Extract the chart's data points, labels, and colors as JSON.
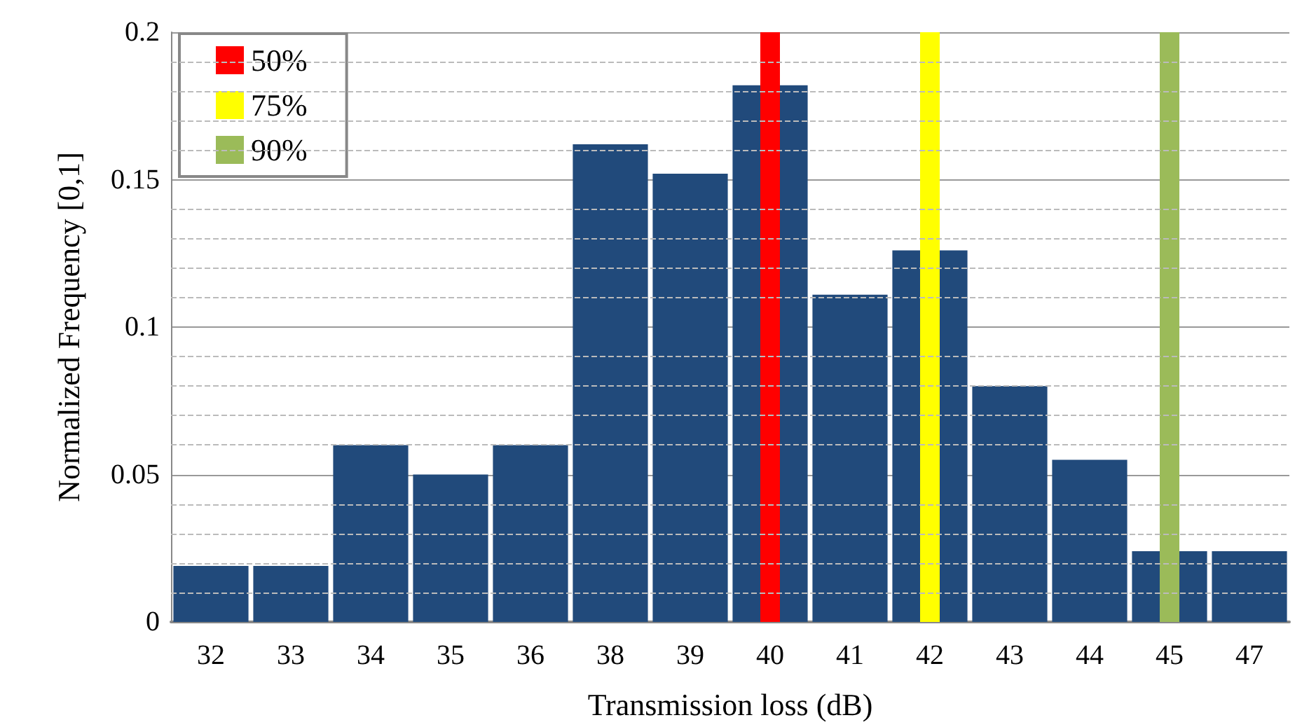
{
  "chart_data": {
    "type": "bar",
    "xlabel": "Transmission loss (dB)",
    "ylabel": "Normalized Frequency [0,1]",
    "categories": [
      "32",
      "33",
      "34",
      "35",
      "36",
      "38",
      "39",
      "40",
      "41",
      "42",
      "43",
      "44",
      "45",
      "47"
    ],
    "series": [
      {
        "color": "#214a7b",
        "values": [
          0.019,
          0.019,
          0.06,
          0.05,
          0.06,
          0.162,
          0.152,
          0.182,
          0.111,
          0.126,
          0.08,
          0.055,
          0.024,
          0.024
        ]
      },
      {
        "name": "50%",
        "color": "#ff0000",
        "values": [
          null,
          null,
          null,
          null,
          null,
          null,
          null,
          0.2,
          null,
          null,
          null,
          null,
          null,
          null
        ]
      },
      {
        "name": "75%",
        "color": "#ffff00",
        "values": [
          null,
          null,
          null,
          null,
          null,
          null,
          null,
          null,
          null,
          0.2,
          null,
          null,
          null,
          null
        ]
      },
      {
        "name": "90%",
        "color": "#9bbb59",
        "values": [
          null,
          null,
          null,
          null,
          null,
          null,
          null,
          null,
          null,
          null,
          null,
          null,
          0.2,
          null
        ]
      }
    ],
    "ylim": [
      0,
      0.2
    ],
    "yticks": [
      0,
      0.05,
      0.1,
      0.15,
      0.2
    ],
    "grid": true,
    "legend": "top left"
  }
}
